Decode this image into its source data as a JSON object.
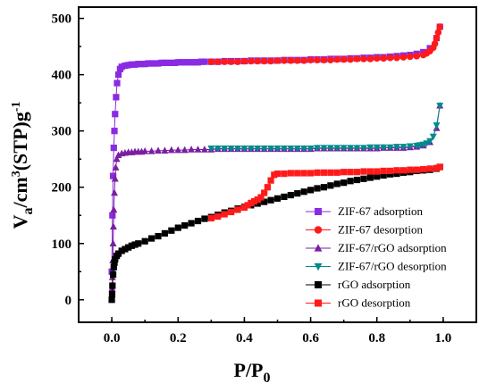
{
  "chart_data": {
    "type": "scatter",
    "xlabel": {
      "main": "P/P",
      "sub": "0"
    },
    "ylabel": {
      "a": "V",
      "a_sub": "a",
      "b": "/cm",
      "b_sup": "3",
      "c": "(STP)g",
      "c_sup": "-1"
    },
    "xlim": [
      -0.1,
      1.1
    ],
    "ylim": [
      -40,
      520
    ],
    "xticks": [
      0.0,
      0.2,
      0.4,
      0.6,
      0.8,
      1.0
    ],
    "xtick_labels": [
      "0.0",
      "0.2",
      "0.4",
      "0.6",
      "0.8",
      "1.0"
    ],
    "yticks": [
      0,
      100,
      200,
      300,
      400,
      500
    ],
    "ytick_labels": [
      "0",
      "100",
      "200",
      "300",
      "400",
      "500"
    ],
    "legend_position": "lower-right",
    "series": [
      {
        "name": "ZIF-67 adsorption",
        "color": "#8a2be2",
        "marker": "square",
        "x": [
          0.0,
          0.002,
          0.004,
          0.006,
          0.008,
          0.01,
          0.013,
          0.016,
          0.02,
          0.025,
          0.03,
          0.04,
          0.05,
          0.06,
          0.07,
          0.08,
          0.09,
          0.1,
          0.11,
          0.12,
          0.13,
          0.14,
          0.15,
          0.16,
          0.17,
          0.18,
          0.19,
          0.2,
          0.21,
          0.22,
          0.23,
          0.24,
          0.25,
          0.26,
          0.27,
          0.28,
          0.3,
          0.32,
          0.34,
          0.36,
          0.38,
          0.4,
          0.42,
          0.44,
          0.46,
          0.48,
          0.5,
          0.52,
          0.54,
          0.56,
          0.58,
          0.6,
          0.62,
          0.64,
          0.66,
          0.68,
          0.7,
          0.72,
          0.74,
          0.76,
          0.78,
          0.8,
          0.82,
          0.84,
          0.86,
          0.88,
          0.9,
          0.92,
          0.94,
          0.96,
          0.98,
          0.99
        ],
        "y": [
          50,
          150,
          220,
          270,
          300,
          330,
          360,
          385,
          400,
          410,
          414,
          416,
          417,
          418,
          418,
          419,
          419,
          419,
          420,
          420,
          420,
          420,
          421,
          421,
          421,
          421,
          421,
          422,
          422,
          422,
          422,
          422,
          422,
          422,
          423,
          423,
          423,
          423,
          424,
          424,
          424,
          424,
          425,
          425,
          425,
          425,
          425,
          426,
          426,
          426,
          426,
          427,
          427,
          427,
          428,
          428,
          428,
          429,
          429,
          430,
          430,
          431,
          431,
          432,
          433,
          434,
          435,
          437,
          440,
          447,
          465,
          485
        ]
      },
      {
        "name": "ZIF-67 desorption",
        "color": "#ff1a1a",
        "marker": "circle",
        "x": [
          0.99,
          0.985,
          0.98,
          0.975,
          0.97,
          0.96,
          0.95,
          0.94,
          0.92,
          0.9,
          0.88,
          0.86,
          0.84,
          0.82,
          0.8,
          0.78,
          0.76,
          0.74,
          0.72,
          0.7,
          0.68,
          0.66,
          0.64,
          0.62,
          0.6,
          0.58,
          0.56,
          0.54,
          0.52,
          0.5,
          0.48,
          0.46,
          0.44,
          0.42,
          0.4,
          0.38,
          0.36,
          0.34,
          0.32,
          0.3
        ],
        "y": [
          485,
          475,
          465,
          455,
          448,
          442,
          438,
          435,
          433,
          432,
          431,
          430,
          430,
          429,
          429,
          428,
          428,
          428,
          427,
          427,
          427,
          426,
          426,
          426,
          426,
          425,
          425,
          425,
          425,
          425,
          424,
          424,
          424,
          424,
          424,
          423,
          423,
          423,
          423,
          423
        ]
      },
      {
        "name": "ZIF-67/rGO adsorption",
        "color": "#7b1fa2",
        "marker": "triangle-up",
        "x": [
          0.0,
          0.001,
          0.002,
          0.003,
          0.004,
          0.005,
          0.006,
          0.008,
          0.01,
          0.012,
          0.015,
          0.02,
          0.03,
          0.04,
          0.05,
          0.06,
          0.07,
          0.08,
          0.09,
          0.1,
          0.12,
          0.14,
          0.16,
          0.18,
          0.2,
          0.22,
          0.24,
          0.26,
          0.28,
          0.3,
          0.32,
          0.34,
          0.36,
          0.38,
          0.4,
          0.42,
          0.44,
          0.46,
          0.48,
          0.5,
          0.52,
          0.54,
          0.56,
          0.58,
          0.6,
          0.62,
          0.64,
          0.66,
          0.68,
          0.7,
          0.72,
          0.74,
          0.76,
          0.78,
          0.8,
          0.82,
          0.84,
          0.86,
          0.88,
          0.9,
          0.92,
          0.94,
          0.96,
          0.98,
          0.99
        ],
        "y": [
          2,
          20,
          40,
          70,
          100,
          130,
          160,
          190,
          215,
          235,
          250,
          257,
          260,
          261,
          262,
          262,
          263,
          263,
          263,
          264,
          264,
          265,
          265,
          266,
          266,
          266,
          267,
          267,
          267,
          267,
          268,
          268,
          268,
          268,
          268,
          268,
          268,
          268,
          268,
          268,
          268,
          268,
          268,
          268,
          268,
          269,
          269,
          269,
          269,
          269,
          269,
          269,
          269,
          269,
          269,
          270,
          270,
          270,
          270,
          271,
          272,
          274,
          280,
          305,
          345
        ]
      },
      {
        "name": "ZIF-67/rGO desorption",
        "color": "#008b8b",
        "marker": "triangle-down",
        "x": [
          0.99,
          0.98,
          0.97,
          0.96,
          0.95,
          0.94,
          0.93,
          0.92,
          0.9,
          0.88,
          0.86,
          0.84,
          0.82,
          0.8,
          0.78,
          0.76,
          0.74,
          0.72,
          0.7,
          0.68,
          0.66,
          0.64,
          0.62,
          0.6,
          0.58,
          0.56,
          0.54,
          0.52,
          0.5,
          0.48,
          0.46,
          0.44,
          0.42,
          0.4,
          0.38,
          0.36,
          0.34,
          0.32,
          0.3
        ],
        "y": [
          345,
          310,
          290,
          282,
          278,
          276,
          275,
          274,
          273,
          272,
          272,
          271,
          271,
          271,
          271,
          270,
          270,
          270,
          270,
          270,
          270,
          270,
          270,
          269,
          269,
          269,
          269,
          269,
          269,
          269,
          269,
          269,
          269,
          269,
          269,
          269,
          269,
          269,
          269
        ]
      },
      {
        "name": "rGO adsorption",
        "color": "#000000",
        "marker": "square",
        "x": [
          0.0,
          0.001,
          0.002,
          0.004,
          0.006,
          0.008,
          0.01,
          0.015,
          0.02,
          0.03,
          0.04,
          0.05,
          0.06,
          0.07,
          0.08,
          0.1,
          0.12,
          0.14,
          0.16,
          0.18,
          0.2,
          0.22,
          0.24,
          0.26,
          0.28,
          0.3,
          0.32,
          0.34,
          0.36,
          0.38,
          0.4,
          0.42,
          0.44,
          0.46,
          0.48,
          0.5,
          0.52,
          0.54,
          0.56,
          0.58,
          0.6,
          0.62,
          0.64,
          0.66,
          0.68,
          0.7,
          0.72,
          0.74,
          0.76,
          0.78,
          0.8,
          0.82,
          0.84,
          0.86,
          0.88,
          0.9,
          0.92,
          0.94,
          0.96,
          0.98,
          0.99
        ],
        "y": [
          0,
          10,
          25,
          45,
          58,
          66,
          72,
          78,
          82,
          87,
          90,
          93,
          96,
          98,
          100,
          104,
          109,
          113,
          118,
          123,
          128,
          132,
          136,
          140,
          144,
          147,
          151,
          155,
          158,
          162,
          165,
          168,
          171,
          174,
          177,
          180,
          183,
          186,
          189,
          192,
          195,
          198,
          200,
          203,
          206,
          208,
          211,
          213,
          215,
          217,
          219,
          221,
          223,
          224,
          226,
          227,
          229,
          230,
          231,
          233,
          236
        ]
      },
      {
        "name": "rGO desorption",
        "color": "#ff1a1a",
        "marker": "square",
        "x": [
          0.99,
          0.98,
          0.96,
          0.94,
          0.92,
          0.9,
          0.88,
          0.86,
          0.84,
          0.82,
          0.8,
          0.78,
          0.76,
          0.74,
          0.72,
          0.7,
          0.68,
          0.66,
          0.64,
          0.62,
          0.6,
          0.58,
          0.56,
          0.54,
          0.52,
          0.5,
          0.49,
          0.48,
          0.47,
          0.46,
          0.45,
          0.44,
          0.43,
          0.42,
          0.41,
          0.4,
          0.38,
          0.36,
          0.34,
          0.32,
          0.3
        ],
        "y": [
          236,
          234,
          233,
          232,
          231,
          231,
          230,
          230,
          229,
          229,
          228,
          228,
          228,
          227,
          227,
          227,
          226,
          226,
          226,
          226,
          225,
          225,
          225,
          225,
          224,
          224,
          222,
          212,
          200,
          190,
          182,
          178,
          175,
          172,
          168,
          164,
          160,
          156,
          152,
          148,
          145
        ]
      }
    ]
  }
}
